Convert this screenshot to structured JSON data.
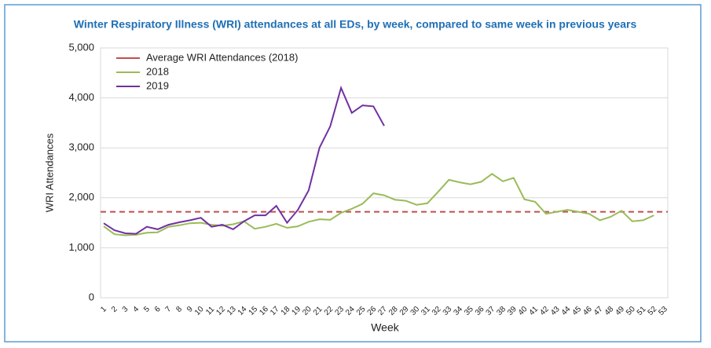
{
  "chart_data": {
    "type": "line",
    "title": "Winter Respiratory Illness (WRI) attendances at all EDs, by week, compared to same week in previous years",
    "x_label": "Week",
    "y_label": "WRI Attendances",
    "categories": [
      "1",
      "2",
      "3",
      "4",
      "5",
      "6",
      "7",
      "8",
      "9",
      "10",
      "11",
      "12",
      "13",
      "14",
      "15",
      "16",
      "17",
      "18",
      "19",
      "20",
      "21",
      "22",
      "23",
      "24",
      "25",
      "26",
      "27",
      "28",
      "29",
      "30",
      "31",
      "32",
      "33",
      "34",
      "35",
      "36",
      "37",
      "38",
      "39",
      "40",
      "41",
      "42",
      "43",
      "44",
      "45",
      "46",
      "47",
      "48",
      "49",
      "50",
      "51",
      "52",
      "53"
    ],
    "reference_line": {
      "name": "Average WRI Attendances (2018)",
      "value": 1720,
      "color": "#c0504d"
    },
    "series": [
      {
        "name": "2018",
        "color": "#9bbb59",
        "values": [
          1430,
          1270,
          1250,
          1260,
          1300,
          1310,
          1420,
          1450,
          1490,
          1500,
          1460,
          1440,
          1470,
          1530,
          1380,
          1420,
          1480,
          1400,
          1430,
          1520,
          1570,
          1560,
          1700,
          1780,
          1880,
          2090,
          2050,
          1960,
          1940,
          1860,
          1890,
          2120,
          2360,
          2310,
          2270,
          2320,
          2480,
          2330,
          2400,
          1970,
          1920,
          1680,
          1720,
          1760,
          1720,
          1680,
          1550,
          1620,
          1740,
          1530,
          1550,
          1650,
          null
        ]
      },
      {
        "name": "2019",
        "color": "#7030a0",
        "values": [
          1490,
          1350,
          1290,
          1280,
          1420,
          1370,
          1460,
          1510,
          1550,
          1600,
          1420,
          1460,
          1370,
          1530,
          1650,
          1650,
          1840,
          1500,
          1760,
          2150,
          3000,
          3430,
          4200,
          3700,
          3850,
          3830,
          3440,
          null,
          null,
          null,
          null,
          null,
          null,
          null,
          null,
          null,
          null,
          null,
          null,
          null,
          null,
          null,
          null,
          null,
          null,
          null,
          null,
          null,
          null,
          null,
          null,
          null,
          null
        ]
      }
    ],
    "ylim": [
      0,
      5000
    ],
    "yticks": [
      0,
      {
        "value": 1000,
        "label": "1,000"
      },
      {
        "value": 2000,
        "label": "2,000"
      },
      {
        "value": 3000,
        "label": "3,000"
      },
      {
        "value": 4000,
        "label": "4,000"
      },
      {
        "value": 5000,
        "label": "5,000"
      }
    ],
    "grid": true,
    "legend": "top-left"
  }
}
